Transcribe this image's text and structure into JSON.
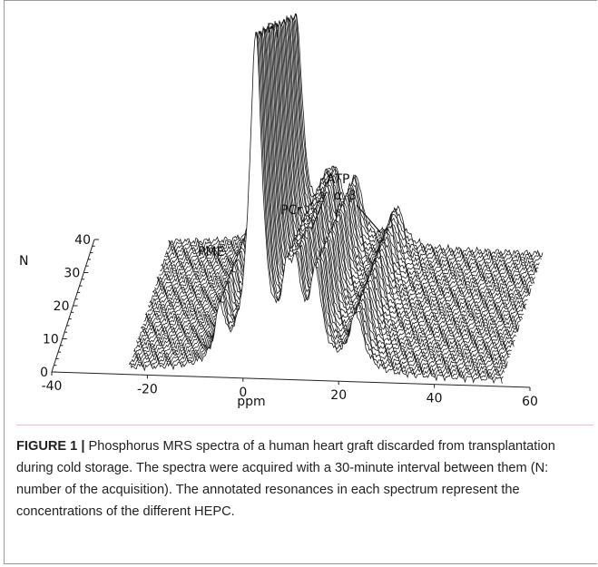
{
  "figure": {
    "label": "FIGURE 1 |",
    "caption": "Phosphorus MRS spectra of a human heart graft discarded from transplantation during cold storage. The spectra were acquired with a 30-minute interval between them (N: number of the acquisition). The annotated resonances in each spectrum represent the concentrations of the different HEPC."
  },
  "chart_data": {
    "type": "waterfall",
    "x_axis": {
      "label": "ppm",
      "ticks": [
        "-40",
        "-20",
        "0",
        "20",
        "40",
        "60"
      ],
      "range": [
        -40,
        60
      ]
    },
    "n_axis": {
      "label": "N",
      "ticks": [
        "0",
        "10",
        "20",
        "30",
        "40"
      ],
      "range": [
        0,
        40
      ]
    },
    "spectrum_count": 39,
    "spectrum_x_range": [
      -24,
      54
    ],
    "peaks": [
      {
        "name": "PME",
        "label": "PME",
        "position_ppm": 7,
        "height": 0.16
      },
      {
        "name": "Pi",
        "label": "P",
        "subscript": "i",
        "position_ppm": 5,
        "height": 1.0
      },
      {
        "name": "PCr",
        "label": "PCr",
        "position_ppm": 0,
        "height": 0.21
      },
      {
        "name": "gamma-ATP",
        "label": "γ",
        "position_ppm": -2.5,
        "height": 0.21
      },
      {
        "name": "alpha-ATP",
        "label": "α",
        "position_ppm": -7.5,
        "height": 0.27
      },
      {
        "name": "beta-ATP",
        "label": "β",
        "position_ppm": -16,
        "height": 0.17
      }
    ],
    "annotations": {
      "atp_group": "ATP"
    }
  }
}
